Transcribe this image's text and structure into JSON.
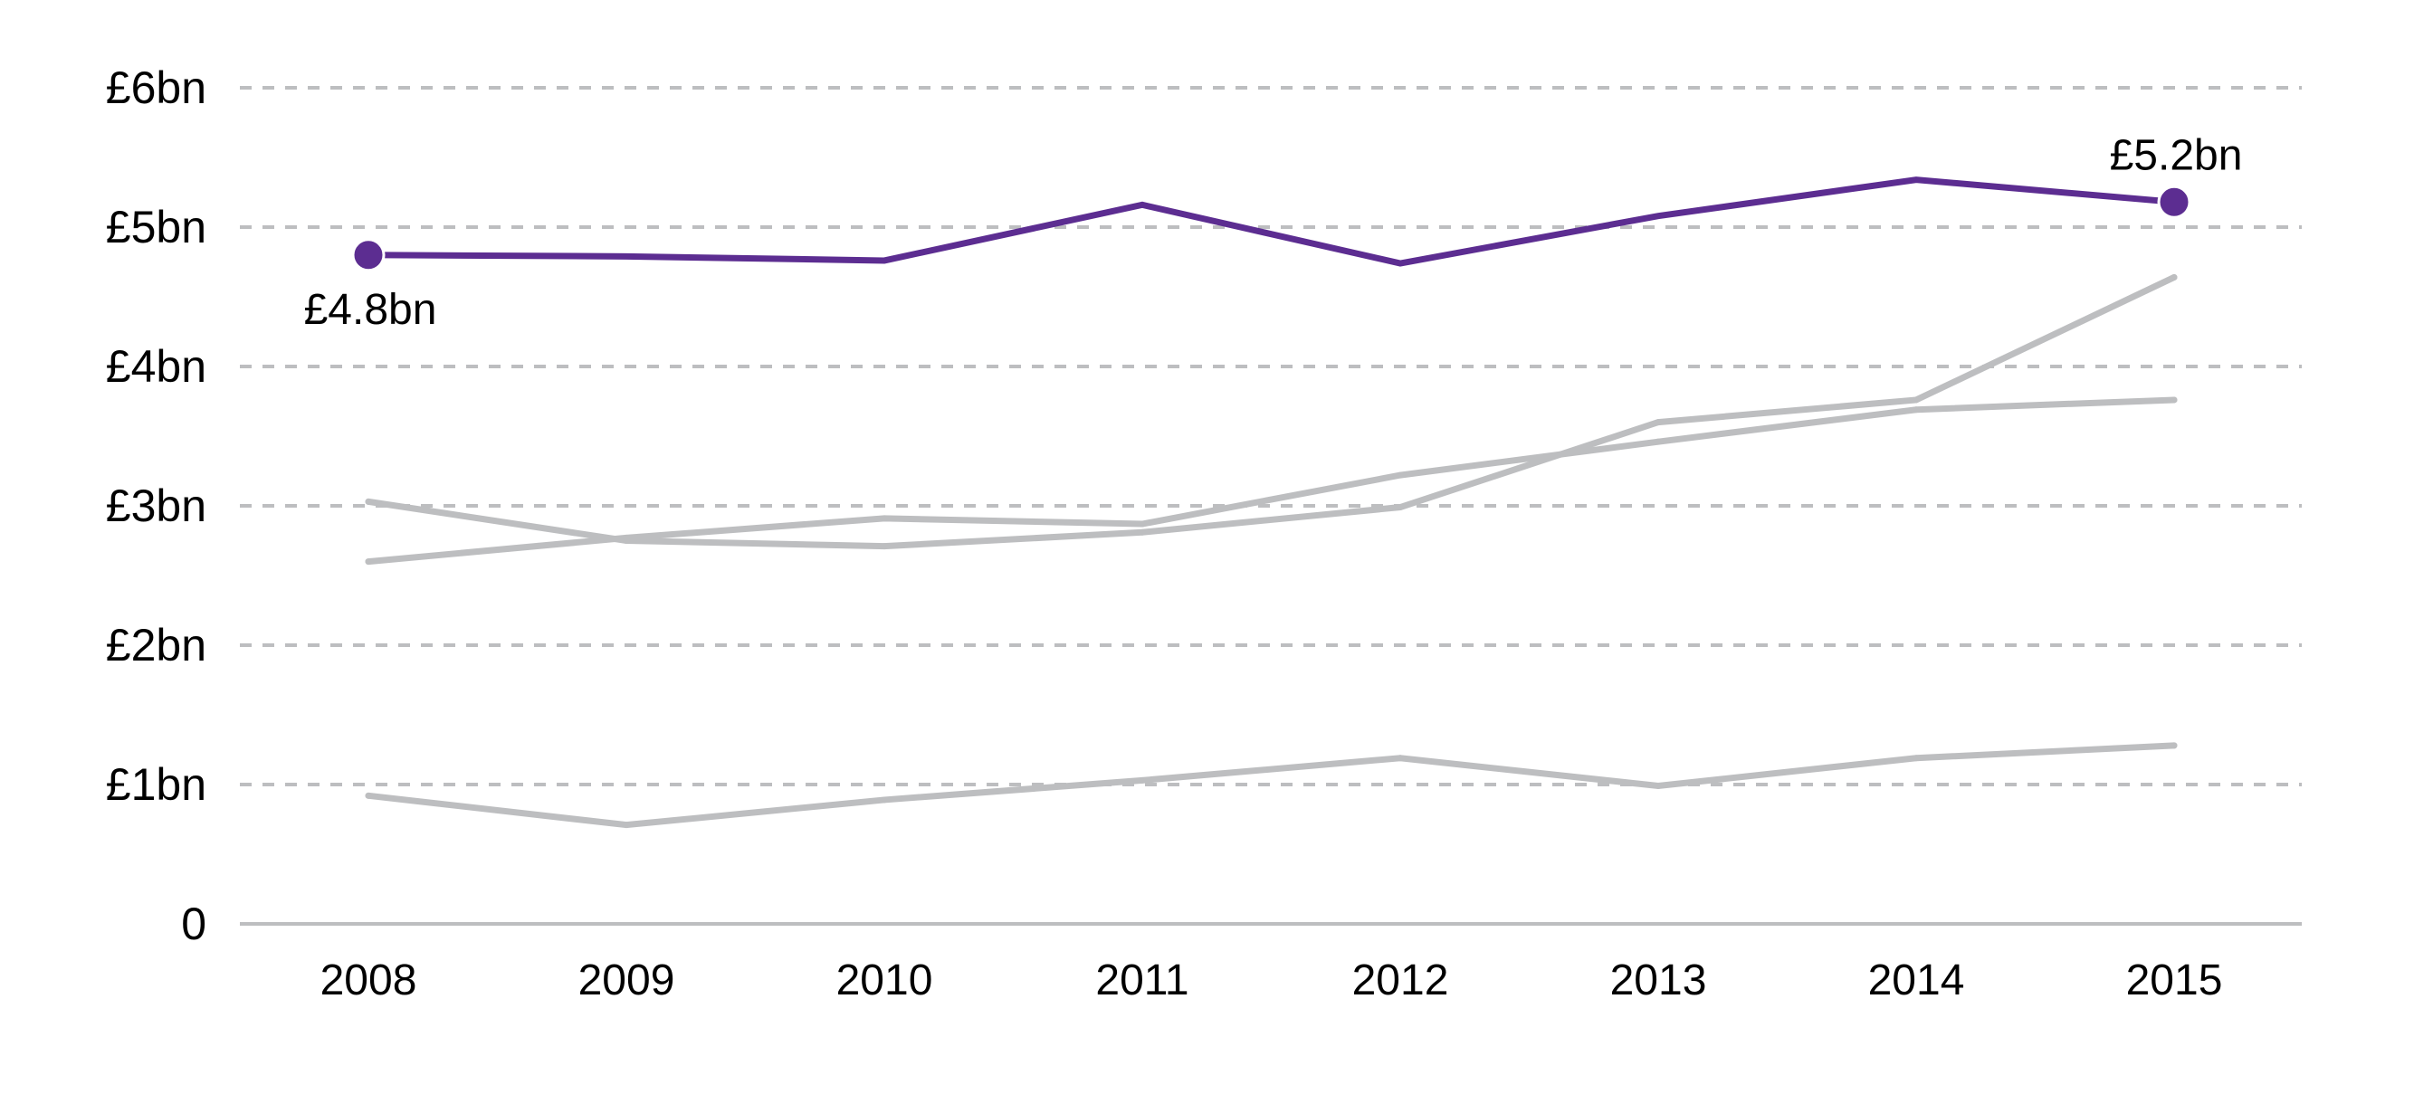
{
  "chart_data": {
    "type": "line",
    "title": "",
    "xlabel": "",
    "ylabel": "",
    "x": [
      "2008",
      "2009",
      "2010",
      "2011",
      "2012",
      "2013",
      "2014",
      "2015"
    ],
    "ylim": [
      0,
      6
    ],
    "y_ticks": [
      {
        "value": 0,
        "label": "0"
      },
      {
        "value": 1,
        "label": "£1bn"
      },
      {
        "value": 2,
        "label": "£2bn"
      },
      {
        "value": 3,
        "label": "£3bn"
      },
      {
        "value": 4,
        "label": "£4bn"
      },
      {
        "value": 5,
        "label": "£5bn"
      },
      {
        "value": 6,
        "label": "£6bn"
      }
    ],
    "grid": true,
    "legend": "none",
    "series": [
      {
        "name": "grey-series-1",
        "color": "#bdbec0",
        "highlight": false,
        "values": [
          3.03,
          2.75,
          2.71,
          2.81,
          2.99,
          3.6,
          3.76,
          4.64
        ]
      },
      {
        "name": "grey-series-2",
        "color": "#bdbec0",
        "highlight": false,
        "values": [
          2.6,
          2.77,
          2.91,
          2.87,
          3.22,
          3.46,
          3.69,
          3.76
        ]
      },
      {
        "name": "grey-series-3",
        "color": "#bdbec0",
        "highlight": false,
        "values": [
          0.92,
          0.71,
          0.89,
          1.03,
          1.19,
          0.99,
          1.19,
          1.28
        ]
      },
      {
        "name": "highlighted-series",
        "color": "#5c2d91",
        "highlight": true,
        "values": [
          4.8,
          4.79,
          4.76,
          5.16,
          4.74,
          5.08,
          5.34,
          5.18
        ]
      }
    ],
    "annotations": [
      {
        "series": "highlighted-series",
        "x": "2008",
        "value": 4.8,
        "text": "£4.8bn",
        "position": "below"
      },
      {
        "series": "highlighted-series",
        "x": "2015",
        "value": 5.2,
        "text": "£5.2bn",
        "position": "above"
      }
    ]
  },
  "colors": {
    "highlight": "#5c2d91",
    "context": "#bdbec0",
    "grid": "#bdbec0",
    "text": "#000000"
  }
}
